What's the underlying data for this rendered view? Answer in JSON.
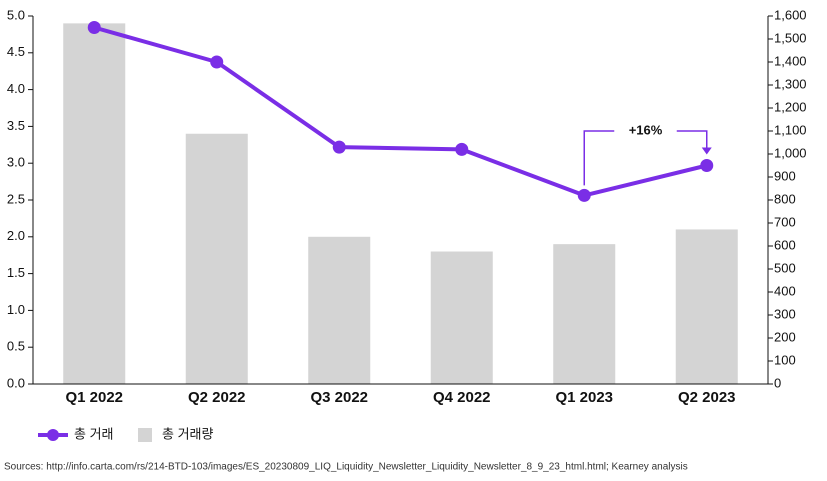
{
  "chart_data": {
    "type": "bar",
    "categories": [
      "Q1 2022",
      "Q2 2022",
      "Q3 2022",
      "Q4 2022",
      "Q1 2023",
      "Q2 2023"
    ],
    "series": [
      {
        "name": "총 거래",
        "type": "line",
        "axis": "y2",
        "color": "#7a2ee6",
        "values": [
          1550,
          1400,
          1030,
          1020,
          820,
          950
        ]
      },
      {
        "name": "총 거래량",
        "type": "bar",
        "axis": "y",
        "color": "#d4d4d4",
        "values": [
          4.9,
          3.4,
          2.0,
          1.8,
          1.9,
          2.1
        ]
      }
    ],
    "ylim": [
      0,
      5
    ],
    "yticks": [
      {
        "value": 0,
        "label": "0.0"
      },
      0.5,
      {
        "value": 1,
        "label": "1.0"
      },
      1.5,
      {
        "value": 2,
        "label": "2.0"
      },
      2.5,
      {
        "value": 3,
        "label": "3.0"
      },
      3.5,
      {
        "value": 4,
        "label": "4.0"
      },
      4.5,
      {
        "value": 5,
        "label": "5.0"
      }
    ],
    "y2lim": [
      0,
      1600
    ],
    "y2ticks": [
      0,
      100,
      200,
      300,
      400,
      500,
      600,
      700,
      800,
      900,
      {
        "value": 1000,
        "label": "1,000"
      },
      {
        "value": 1100,
        "label": "1,100"
      },
      {
        "value": 1200,
        "label": "1,200"
      },
      {
        "value": 1300,
        "label": "1,300"
      },
      {
        "value": 1400,
        "label": "1,400"
      },
      {
        "value": 1500,
        "label": "1,500"
      },
      {
        "value": 1600,
        "label": "1,600"
      }
    ],
    "annotation": "+16%",
    "source": "Sources: http://info.carta.com/rs/214-BTD-103/images/ES_20230809_LIQ_Liquidity_Newsletter_Liquidity_Newsletter_8_9_23_html.html; Kearney analysis"
  }
}
